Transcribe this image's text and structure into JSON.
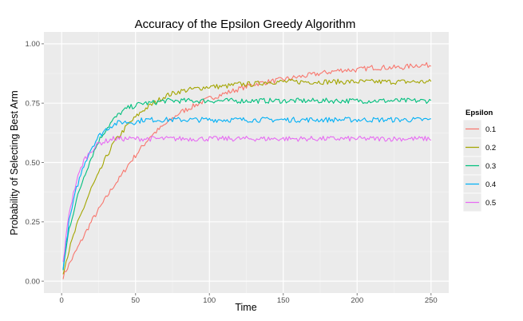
{
  "chart_data": {
    "type": "line",
    "title": "Accuracy of the Epsilon Greedy Algorithm",
    "xlabel": "Time",
    "ylabel": "Probability of Selecting Best Arm",
    "xlim": [
      -12,
      262
    ],
    "ylim": [
      -0.05,
      1.05
    ],
    "x_ticks": [
      0,
      50,
      100,
      150,
      200,
      250
    ],
    "x_tick_labels": [
      "0",
      "50",
      "100",
      "150",
      "200",
      "250"
    ],
    "y_ticks": [
      0,
      0.25,
      0.5,
      0.75,
      1.0
    ],
    "y_tick_labels": [
      "0.00",
      "0.25",
      "0.50",
      "0.75",
      "1.00"
    ],
    "grid": true,
    "legend": {
      "title": "Epsilon",
      "position": "right"
    },
    "x": [
      1,
      5,
      10,
      15,
      20,
      25,
      30,
      35,
      40,
      45,
      50,
      55,
      60,
      70,
      80,
      90,
      100,
      110,
      120,
      130,
      140,
      150,
      160,
      170,
      180,
      190,
      200,
      210,
      220,
      230,
      240,
      250
    ],
    "series": [
      {
        "name": "0.1",
        "color": "#F8766D",
        "values": [
          0.02,
          0.07,
          0.13,
          0.19,
          0.25,
          0.3,
          0.35,
          0.4,
          0.44,
          0.49,
          0.53,
          0.57,
          0.61,
          0.66,
          0.71,
          0.74,
          0.77,
          0.79,
          0.81,
          0.83,
          0.84,
          0.85,
          0.86,
          0.87,
          0.88,
          0.89,
          0.89,
          0.9,
          0.9,
          0.9,
          0.91,
          0.91
        ]
      },
      {
        "name": "0.2",
        "color": "#A3A500",
        "values": [
          0.04,
          0.13,
          0.23,
          0.31,
          0.39,
          0.45,
          0.52,
          0.58,
          0.62,
          0.66,
          0.69,
          0.72,
          0.74,
          0.78,
          0.8,
          0.81,
          0.82,
          0.82,
          0.83,
          0.83,
          0.84,
          0.84,
          0.84,
          0.84,
          0.84,
          0.84,
          0.84,
          0.84,
          0.84,
          0.84,
          0.84,
          0.84
        ]
      },
      {
        "name": "0.3",
        "color": "#00BF7D",
        "values": [
          0.05,
          0.22,
          0.34,
          0.44,
          0.52,
          0.59,
          0.64,
          0.68,
          0.71,
          0.73,
          0.74,
          0.75,
          0.75,
          0.76,
          0.76,
          0.76,
          0.76,
          0.76,
          0.76,
          0.76,
          0.76,
          0.76,
          0.76,
          0.76,
          0.76,
          0.76,
          0.76,
          0.76,
          0.76,
          0.76,
          0.76,
          0.76
        ]
      },
      {
        "name": "0.4",
        "color": "#00B0F6",
        "values": [
          0.06,
          0.25,
          0.39,
          0.49,
          0.56,
          0.61,
          0.64,
          0.66,
          0.67,
          0.67,
          0.67,
          0.68,
          0.68,
          0.68,
          0.68,
          0.68,
          0.68,
          0.68,
          0.68,
          0.68,
          0.68,
          0.68,
          0.68,
          0.68,
          0.68,
          0.68,
          0.68,
          0.68,
          0.68,
          0.68,
          0.68,
          0.68
        ]
      },
      {
        "name": "0.5",
        "color": "#E76BF3",
        "values": [
          0.08,
          0.29,
          0.42,
          0.51,
          0.55,
          0.58,
          0.59,
          0.6,
          0.6,
          0.6,
          0.6,
          0.6,
          0.6,
          0.6,
          0.6,
          0.6,
          0.6,
          0.6,
          0.6,
          0.6,
          0.6,
          0.6,
          0.6,
          0.6,
          0.6,
          0.6,
          0.6,
          0.6,
          0.6,
          0.6,
          0.6,
          0.6
        ]
      }
    ]
  },
  "colors": {
    "panel_background": "#EBEBEB",
    "grid_major": "#FFFFFF",
    "grid_minor": "#F5F5F5",
    "legend_key_background": "#EBEBEB"
  }
}
